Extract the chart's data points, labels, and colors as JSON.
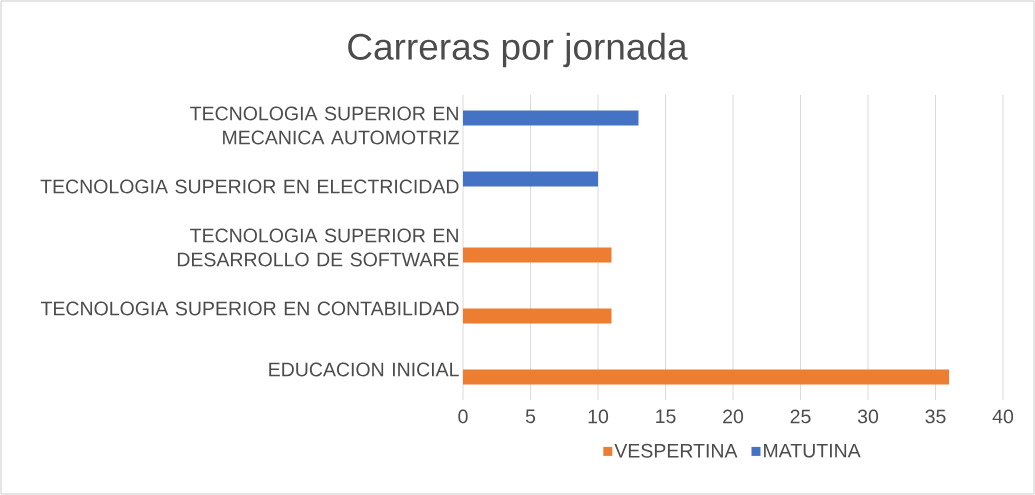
{
  "chart_data": {
    "type": "bar",
    "orientation": "horizontal",
    "title": "Carreras por jornada",
    "categories": [
      "TECNOLOGIA SUPERIOR EN MECANICA AUTOMOTRIZ",
      "TECNOLOGIA SUPERIOR EN ELECTRICIDAD",
      "TECNOLOGIA SUPERIOR EN DESARROLLO DE SOFTWARE",
      "TECNOLOGIA SUPERIOR EN CONTABILIDAD",
      "EDUCACION INICIAL"
    ],
    "series": [
      {
        "name": "VESPERTINA",
        "color": "#ed7d31",
        "values": [
          null,
          null,
          11,
          11,
          36
        ]
      },
      {
        "name": "MATUTINA",
        "color": "#4472c4",
        "values": [
          13,
          10,
          null,
          null,
          null
        ]
      }
    ],
    "xlim": [
      0,
      40
    ],
    "xticks": [
      0,
      5,
      10,
      15,
      20,
      25,
      30,
      35,
      40
    ],
    "grid": "x",
    "legend": "bottom"
  }
}
